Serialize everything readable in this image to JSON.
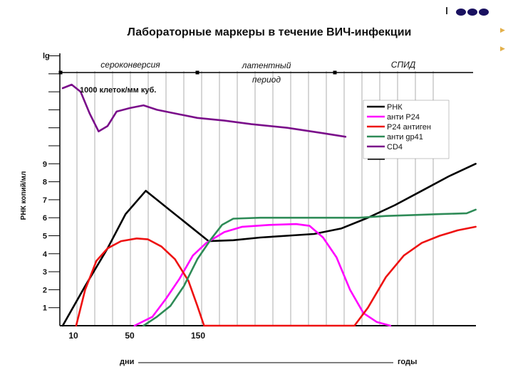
{
  "chart_data": {
    "type": "line",
    "title": "Лабораторные маркеры в течение ВИЧ-инфекции",
    "y_axis_top_label": "lg",
    "ylabel": "РНК копий/мл",
    "ylim": [
      0,
      9
    ],
    "yticks": [
      "1",
      "2",
      "3",
      "4",
      "5",
      "6",
      "7",
      "8",
      "9"
    ],
    "xlabel_left": "дни",
    "xlabel_right": "годы",
    "xticks": [
      "10",
      "50",
      "150"
    ],
    "phases": [
      "сероконверсия",
      "латентный период",
      "СПИД"
    ],
    "cd4_annotation": "1000 клеток/мм куб.",
    "legend_position": "right",
    "grid": "vertical lines",
    "series": [
      {
        "name": "РНК",
        "color": "#000000",
        "points": [
          [
            0,
            0
          ],
          [
            5,
            2.2
          ],
          [
            10,
            4.3
          ],
          [
            14,
            6.2
          ],
          [
            18.5,
            7.5
          ],
          [
            21,
            7.0
          ],
          [
            24,
            6.4
          ],
          [
            28,
            5.6
          ],
          [
            32.5,
            4.7
          ],
          [
            38,
            4.75
          ],
          [
            44,
            4.9
          ],
          [
            50,
            5.0
          ],
          [
            56,
            5.1
          ],
          [
            62,
            5.4
          ],
          [
            68,
            6.0
          ],
          [
            74,
            6.7
          ],
          [
            80,
            7.5
          ],
          [
            86,
            8.3
          ],
          [
            92,
            9.0
          ]
        ]
      },
      {
        "name": "анти Р24",
        "color": "#ff00ff",
        "points": [
          [
            16,
            0
          ],
          [
            20,
            0.5
          ],
          [
            23,
            1.5
          ],
          [
            26,
            2.6
          ],
          [
            29,
            3.9
          ],
          [
            32,
            4.6
          ],
          [
            36,
            5.2
          ],
          [
            40,
            5.5
          ],
          [
            46,
            5.6
          ],
          [
            52,
            5.65
          ],
          [
            55,
            5.55
          ],
          [
            58,
            4.9
          ],
          [
            61,
            3.8
          ],
          [
            64,
            2.0
          ],
          [
            67,
            0.7
          ],
          [
            70,
            0.2
          ],
          [
            73,
            0
          ]
        ]
      },
      {
        "name": "Р24 антиген",
        "color": "#ee1111",
        "points": [
          [
            3,
            0
          ],
          [
            5,
            2.0
          ],
          [
            7.5,
            3.6
          ],
          [
            10,
            4.3
          ],
          [
            13,
            4.7
          ],
          [
            16.5,
            4.85
          ],
          [
            19,
            4.8
          ],
          [
            22,
            4.4
          ],
          [
            25,
            3.7
          ],
          [
            28,
            2.5
          ],
          [
            30,
            1.1
          ],
          [
            31.5,
            0
          ],
          [
            65,
            0
          ],
          [
            68,
            1.0
          ],
          [
            72,
            2.7
          ],
          [
            76,
            3.9
          ],
          [
            80,
            4.6
          ],
          [
            84,
            5.0
          ],
          [
            88,
            5.3
          ],
          [
            92,
            5.5
          ]
        ]
      },
      {
        "name": "анти gp41",
        "color": "#2e8b57",
        "points": [
          [
            18,
            0
          ],
          [
            21,
            0.5
          ],
          [
            24,
            1.1
          ],
          [
            27,
            2.2
          ],
          [
            30,
            3.7
          ],
          [
            33,
            4.8
          ],
          [
            35.5,
            5.6
          ],
          [
            38,
            5.95
          ],
          [
            44,
            6.0
          ],
          [
            52,
            6.0
          ],
          [
            60,
            6.0
          ],
          [
            66,
            6.0
          ],
          [
            72,
            6.1
          ],
          [
            78,
            6.15
          ],
          [
            84,
            6.2
          ],
          [
            90,
            6.25
          ],
          [
            92,
            6.45
          ]
        ]
      },
      {
        "name": "CD4",
        "color": "#7a0d8a",
        "points": [
          [
            0,
            13.2
          ],
          [
            2,
            13.4
          ],
          [
            4,
            13.0
          ],
          [
            6,
            11.8
          ],
          [
            8,
            10.8
          ],
          [
            10,
            11.1
          ],
          [
            12,
            11.9
          ],
          [
            15,
            12.1
          ],
          [
            18,
            12.25
          ],
          [
            21,
            12.0
          ],
          [
            25,
            11.8
          ],
          [
            30,
            11.55
          ],
          [
            36,
            11.4
          ],
          [
            42,
            11.2
          ],
          [
            50,
            11.0
          ],
          [
            58,
            10.7
          ],
          [
            63,
            10.5
          ]
        ]
      }
    ]
  }
}
